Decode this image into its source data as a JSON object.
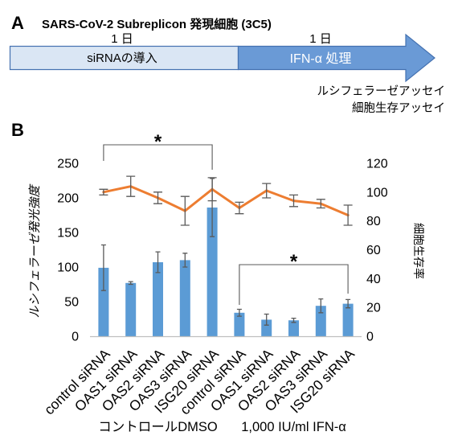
{
  "figure": {
    "colors": {
      "arrow_step1": "#dae6f4",
      "arrow_step2": "#6a9ad6",
      "arrow_border": "#4471b0",
      "arrow_step2_text": "#ffffff",
      "bar": "#5b9bd5",
      "line": "#ed7d31",
      "error_bar": "#5a5a5a",
      "axis": "#bfbfbf",
      "bracket": "#595959"
    }
  },
  "panel_a": {
    "label": "A",
    "title": "SARS-CoV-2 Subreplicon 発現細胞 (3C5)",
    "steps": [
      {
        "duration": "1 日",
        "label": "siRNAの導入"
      },
      {
        "duration": "1 日",
        "label": "IFN-α 処理"
      }
    ],
    "assays": [
      "ルシフェラーゼアッセイ",
      "細胞生存アッセイ"
    ]
  },
  "panel_b": {
    "label": "B"
  },
  "chart_data": {
    "type": "bar",
    "categories": [
      "control siRNA",
      "OAS1 siRNA",
      "OAS2 siRNA",
      "OAS3 siRNA",
      "ISG20 siRNA",
      "control siRNA",
      "OAS1 siRNA",
      "OAS2 siRNA",
      "OAS3 siRNA",
      "ISG20 siRNA"
    ],
    "groups": [
      {
        "label": "コントロールDMSO",
        "first": 0,
        "last": 4
      },
      {
        "label": "1,000 IU/ml IFN-α",
        "first": 5,
        "last": 9
      }
    ],
    "series": [
      {
        "type": "bar",
        "axis": "left",
        "values": [
          99,
          77,
          107,
          110,
          186,
          34,
          24,
          23,
          44,
          47
        ],
        "errors": [
          33,
          2,
          15,
          10,
          42,
          5,
          8,
          3,
          10,
          6
        ]
      },
      {
        "type": "line",
        "axis": "right",
        "values": [
          100,
          104,
          96,
          87,
          102,
          89,
          101,
          94,
          92,
          84
        ],
        "errors": [
          2,
          7,
          4,
          10,
          8,
          4,
          5,
          4,
          3,
          7
        ]
      }
    ],
    "ylabel": "ルシフェラーゼ発光強度",
    "ylim": [
      0,
      250
    ],
    "yticks": [
      0,
      50,
      100,
      150,
      200,
      250
    ],
    "y2label": "細胞生存率",
    "y2lim": [
      0,
      120
    ],
    "y2ticks": [
      0,
      20,
      40,
      60,
      80,
      100,
      120
    ],
    "significance": [
      {
        "first": 0,
        "last": 4,
        "label": "*"
      },
      {
        "first": 5,
        "last": 9,
        "label": "*"
      }
    ],
    "legend": false,
    "grid": false
  }
}
